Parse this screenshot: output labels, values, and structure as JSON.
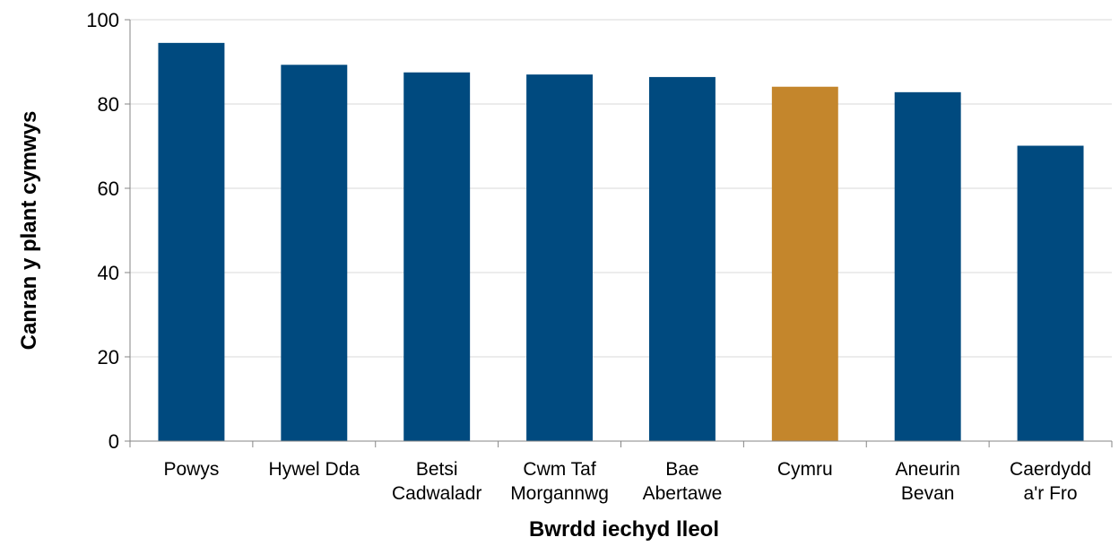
{
  "chart_data": {
    "type": "bar",
    "categories": [
      [
        "Powys"
      ],
      [
        "Hywel Dda"
      ],
      [
        "Betsi",
        "Cadwaladr"
      ],
      [
        "Cwm Taf",
        "Morgannwg"
      ],
      [
        "Bae",
        "Abertawe"
      ],
      [
        "Cymru"
      ],
      [
        "Aneurin",
        "Bevan"
      ],
      [
        "Caerdydd",
        "a'r Fro"
      ]
    ],
    "values": [
      94.5,
      89.3,
      87.5,
      87.0,
      86.4,
      84.1,
      82.8,
      70.1
    ],
    "colors": [
      "#004a7f",
      "#004a7f",
      "#004a7f",
      "#004a7f",
      "#004a7f",
      "#c4862c",
      "#004a7f",
      "#004a7f"
    ],
    "xlabel": "Bwrdd iechyd lleol",
    "ylabel": "Canran y plant cymwys",
    "ylim": [
      0,
      100
    ],
    "yticks": [
      0,
      20,
      40,
      60,
      80,
      100
    ],
    "grid": true,
    "grid_color": "#d9d9d9",
    "axis_color": "#868686"
  }
}
